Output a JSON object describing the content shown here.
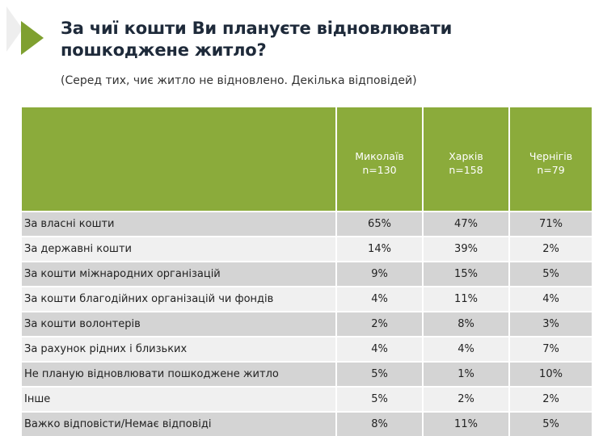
{
  "title": "За чиї кошти Ви плануєте відновлювати пошкоджене житло?",
  "subtitle": "(Серед тих, чиє житло не відновлено. Декілька відповідей)",
  "colors": {
    "header": "#8bab3b",
    "accent": "#7fa030"
  },
  "columns": [
    {
      "city": "Миколаїв",
      "n": "n=130"
    },
    {
      "city": "Харків",
      "n": "n=158"
    },
    {
      "city": "Чернігів",
      "n": "n=79"
    }
  ],
  "rows": [
    {
      "label": "За власні кошти",
      "values": [
        "65%",
        "47%",
        "71%"
      ]
    },
    {
      "label": "За державні кошти",
      "values": [
        "14%",
        "39%",
        "2%"
      ]
    },
    {
      "label": "За кошти міжнародних організацій",
      "values": [
        "9%",
        "15%",
        "5%"
      ]
    },
    {
      "label": "За кошти благодійних організацій чи фондів",
      "values": [
        "4%",
        "11%",
        "4%"
      ]
    },
    {
      "label": "За кошти волонтерів",
      "values": [
        "2%",
        "8%",
        "3%"
      ]
    },
    {
      "label": "За рахунок рідних і близьких",
      "values": [
        "4%",
        "4%",
        "7%"
      ]
    },
    {
      "label": "Не планую відновлювати пошкоджене житло",
      "values": [
        "5%",
        "1%",
        "10%"
      ]
    },
    {
      "label": "Інше",
      "values": [
        "5%",
        "2%",
        "2%"
      ]
    },
    {
      "label": "Важко відповісти/Немає відповіді",
      "values": [
        "8%",
        "11%",
        "5%"
      ]
    }
  ]
}
